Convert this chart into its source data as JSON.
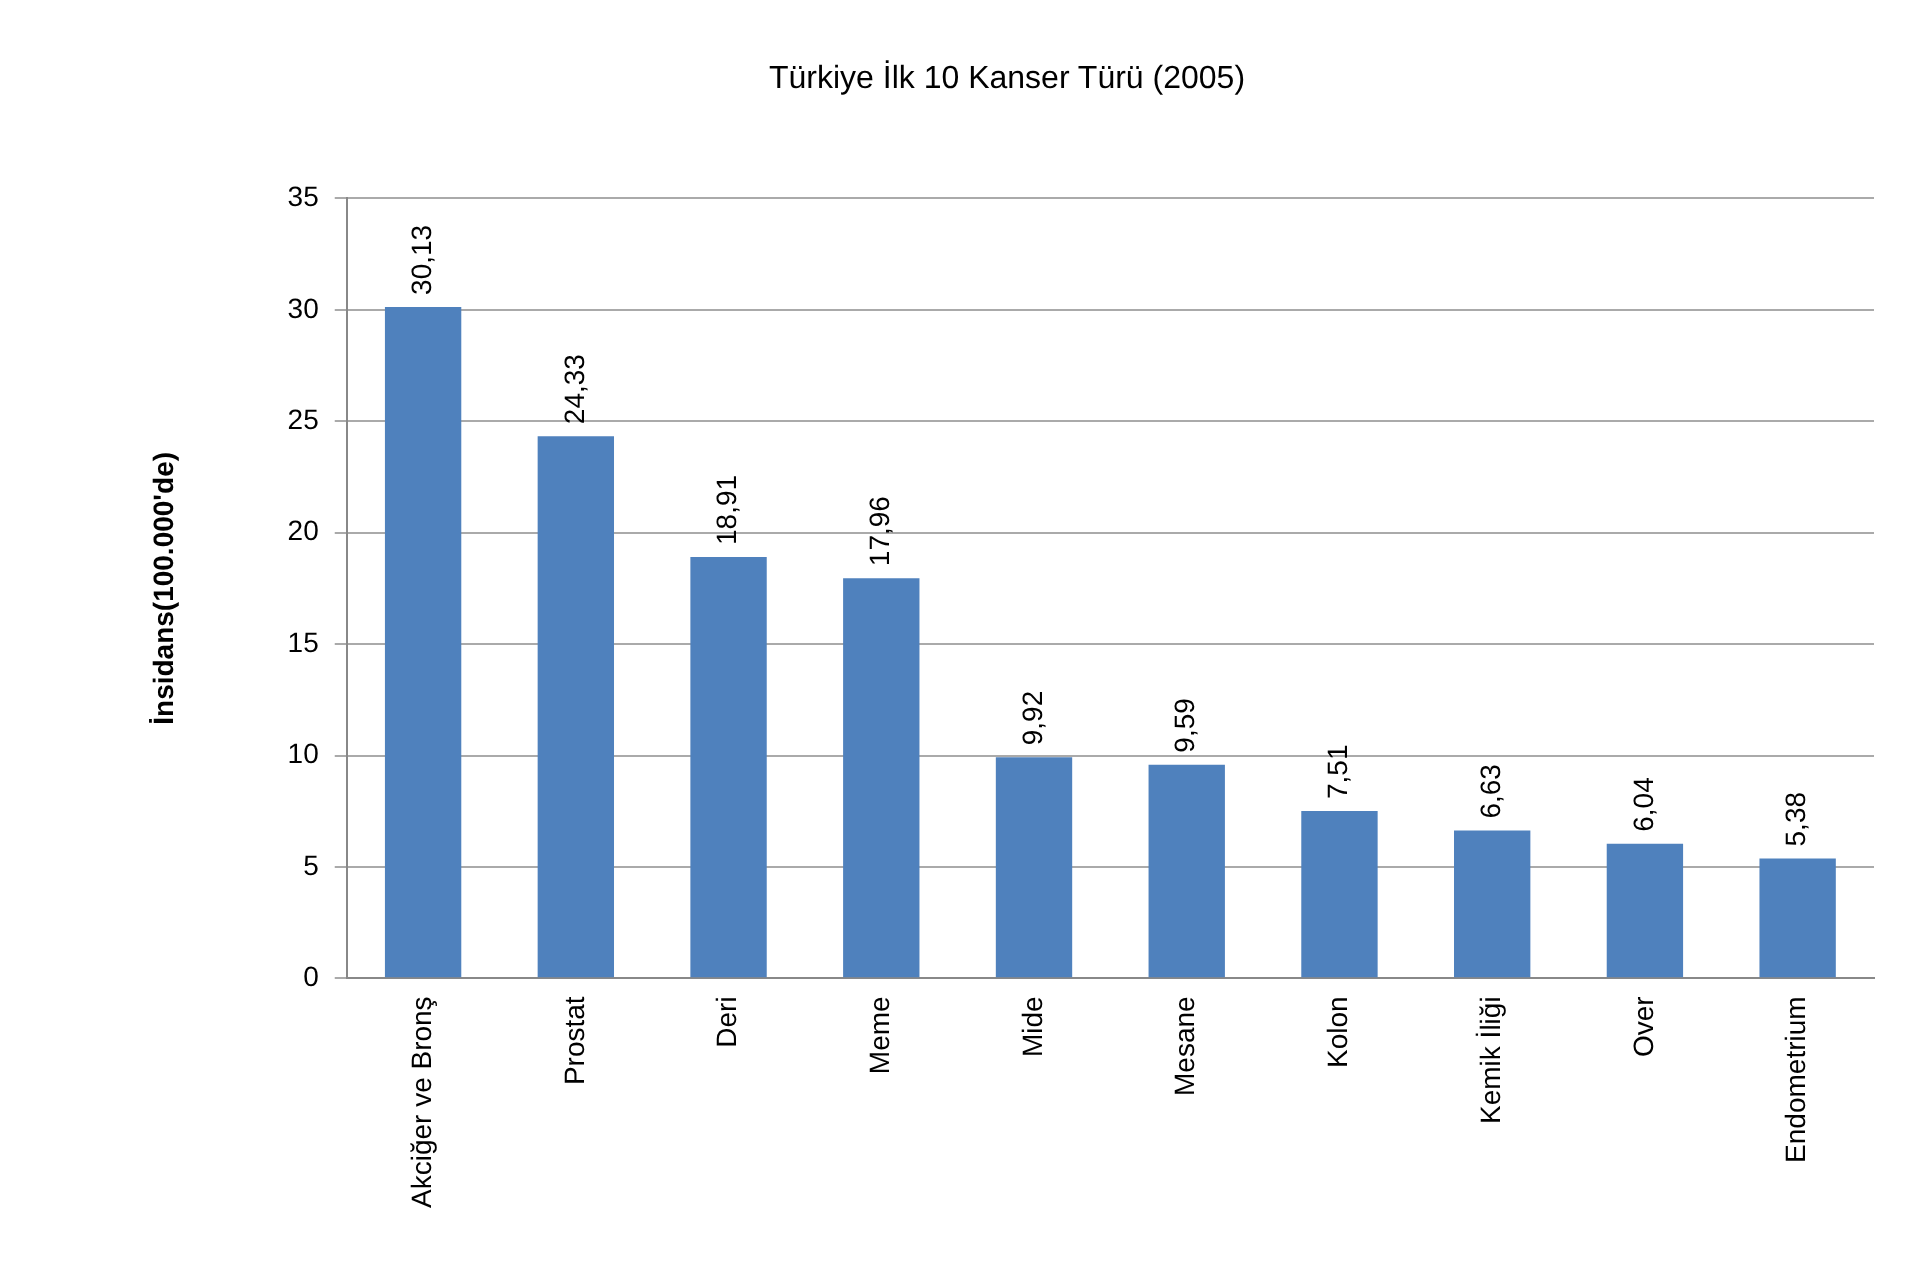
{
  "chart_data": {
    "type": "bar",
    "title": "Türkiye İlk 10 Kanser Türü (2005)",
    "ylabel": "İnsidans(100.000'de)",
    "categories": [
      "Akciğer ve Bronş",
      "Prostat",
      "Deri",
      "Meme",
      "Mide",
      "Mesane",
      "Kolon",
      "Kemik İliği",
      "Over",
      "Endometrium"
    ],
    "values": [
      30.13,
      24.33,
      18.91,
      17.96,
      9.92,
      9.59,
      7.51,
      6.63,
      6.04,
      5.38
    ],
    "value_labels": [
      "30,13",
      "24,33",
      "18,91",
      "17,96",
      "9,92",
      "9,59",
      "7,51",
      "6,63",
      "6,04",
      "5,38"
    ],
    "color": "#4f81bd",
    "ylim": [
      0,
      35
    ],
    "yticks": [
      0,
      5,
      10,
      15,
      20,
      25,
      30,
      35
    ],
    "grid": "y",
    "legend": false
  }
}
